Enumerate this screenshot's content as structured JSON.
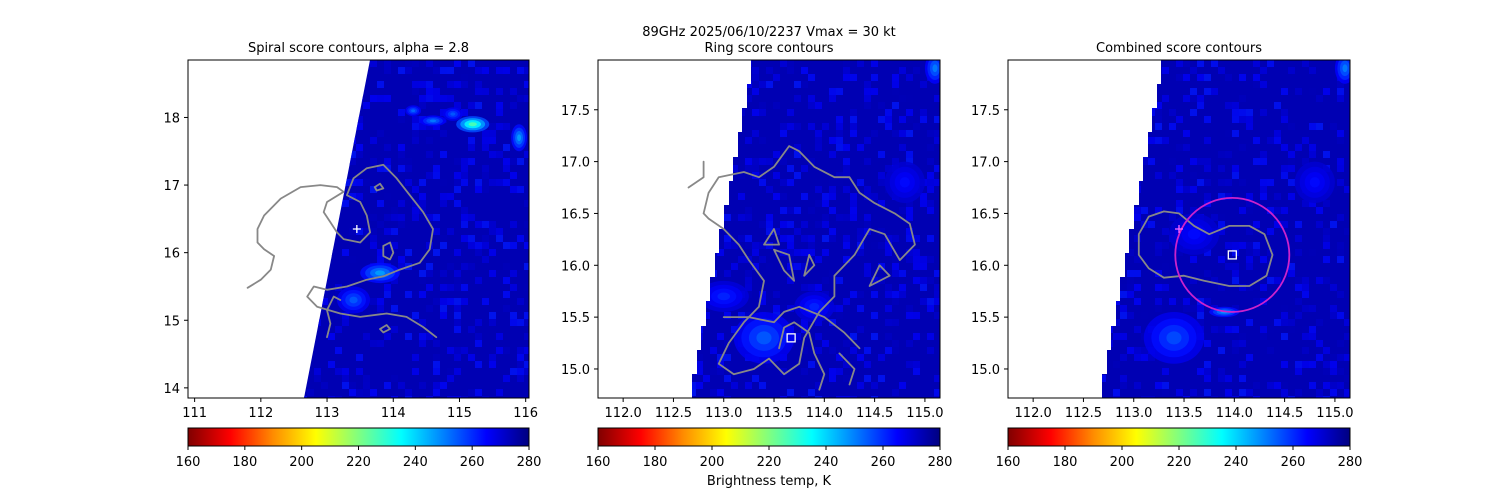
{
  "figure": {
    "suptitle_line1": "89GHz  2025/06/10/2237    Vmax = 30 kt",
    "colorbar_label": "Brightness temp, K"
  },
  "colorbar": {
    "ticks": [
      "160",
      "180",
      "200",
      "220",
      "240",
      "260",
      "280"
    ],
    "range": [
      160,
      280
    ],
    "colormap": "jet_r",
    "colors": [
      "#800000",
      "#ff0000",
      "#ff8c00",
      "#ffff00",
      "#80ff80",
      "#00ffff",
      "#0080ff",
      "#0000ff",
      "#000080"
    ]
  },
  "chart_data": [
    {
      "type": "heatmap",
      "title": "Spiral score contours, alpha =  2.8",
      "xlim": [
        110.9,
        116.05
      ],
      "ylim": [
        13.85,
        18.85
      ],
      "xticks": [
        "111",
        "112",
        "113",
        "114",
        "115",
        "116"
      ],
      "yticks": [
        "14",
        "15",
        "16",
        "17",
        "18"
      ],
      "markers": [
        {
          "type": "plus",
          "x": 113.45,
          "y": 16.35,
          "color": "#ffffff"
        }
      ],
      "contours": [
        [
          [
            111.8,
            15.48
          ],
          [
            112.0,
            15.6
          ],
          [
            112.15,
            15.75
          ],
          [
            112.2,
            15.95
          ],
          [
            112.05,
            16.05
          ],
          [
            111.95,
            16.15
          ],
          [
            111.95,
            16.35
          ],
          [
            112.05,
            16.55
          ],
          [
            112.3,
            16.8
          ],
          [
            112.6,
            16.97
          ],
          [
            112.9,
            17.0
          ],
          [
            113.15,
            16.97
          ],
          [
            113.25,
            16.9
          ],
          [
            113.0,
            16.75
          ],
          [
            112.95,
            16.6
          ],
          [
            113.05,
            16.45
          ],
          [
            113.15,
            16.3
          ],
          [
            113.25,
            16.2
          ],
          [
            113.5,
            16.15
          ],
          [
            113.65,
            16.3
          ],
          [
            113.6,
            16.55
          ],
          [
            113.5,
            16.75
          ],
          [
            113.3,
            16.85
          ],
          [
            113.4,
            17.1
          ],
          [
            113.6,
            17.25
          ],
          [
            113.85,
            17.3
          ],
          [
            114.05,
            17.1
          ],
          [
            114.25,
            16.85
          ],
          [
            114.45,
            16.6
          ],
          [
            114.6,
            16.35
          ],
          [
            114.55,
            16.05
          ],
          [
            114.4,
            15.85
          ],
          [
            114.1,
            15.75
          ],
          [
            113.85,
            15.65
          ],
          [
            113.6,
            15.6
          ],
          [
            113.3,
            15.5
          ],
          [
            113.0,
            15.45
          ],
          [
            112.8,
            15.5
          ],
          [
            112.7,
            15.35
          ],
          [
            112.85,
            15.2
          ],
          [
            113.2,
            15.1
          ],
          [
            113.5,
            15.05
          ],
          [
            113.9,
            15.1
          ],
          [
            114.2,
            15.05
          ],
          [
            114.45,
            14.9
          ],
          [
            114.65,
            14.75
          ]
        ],
        [
          [
            113.0,
            14.75
          ],
          [
            113.05,
            14.95
          ],
          [
            113.0,
            15.15
          ],
          [
            113.1,
            15.35
          ],
          [
            113.2,
            15.3
          ]
        ],
        [
          [
            113.85,
            16.1
          ],
          [
            113.95,
            16.15
          ],
          [
            114.0,
            16.0
          ],
          [
            113.95,
            15.9
          ],
          [
            113.85,
            15.95
          ],
          [
            113.85,
            16.1
          ]
        ],
        [
          [
            113.72,
            16.97
          ],
          [
            113.8,
            17.02
          ],
          [
            113.85,
            16.95
          ],
          [
            113.75,
            16.92
          ],
          [
            113.72,
            16.97
          ]
        ],
        [
          [
            113.8,
            14.87
          ],
          [
            113.9,
            14.93
          ],
          [
            113.95,
            14.87
          ],
          [
            113.85,
            14.82
          ],
          [
            113.8,
            14.87
          ]
        ]
      ]
    },
    {
      "type": "heatmap",
      "title": "Ring score contours",
      "xlim": [
        111.75,
        115.15
      ],
      "ylim": [
        14.72,
        17.98
      ],
      "xticks": [
        "112.0",
        "112.5",
        "113.0",
        "113.5",
        "114.0",
        "114.5",
        "115.0"
      ],
      "yticks": [
        "15.0",
        "15.5",
        "16.0",
        "16.5",
        "17.0",
        "17.5"
      ],
      "markers": [
        {
          "type": "square",
          "x": 113.67,
          "y": 15.3,
          "color": "#ffffff"
        }
      ],
      "contours": [
        [
          [
            112.8,
            16.5
          ],
          [
            112.85,
            16.7
          ],
          [
            112.95,
            16.85
          ],
          [
            113.2,
            16.9
          ],
          [
            113.35,
            16.85
          ],
          [
            113.5,
            16.95
          ],
          [
            113.65,
            17.15
          ],
          [
            113.75,
            17.1
          ],
          [
            113.9,
            16.95
          ],
          [
            114.1,
            16.85
          ],
          [
            114.25,
            16.85
          ],
          [
            114.35,
            16.7
          ],
          [
            114.5,
            16.6
          ],
          [
            114.7,
            16.5
          ],
          [
            114.85,
            16.4
          ],
          [
            114.9,
            16.2
          ],
          [
            114.75,
            16.05
          ],
          [
            114.6,
            16.3
          ],
          [
            114.45,
            16.35
          ],
          [
            114.3,
            16.1
          ],
          [
            114.1,
            15.9
          ],
          [
            114.1,
            15.7
          ],
          [
            113.95,
            15.55
          ],
          [
            113.8,
            15.3
          ],
          [
            113.75,
            15.05
          ],
          [
            113.6,
            14.95
          ],
          [
            113.45,
            15.1
          ],
          [
            113.3,
            15.0
          ],
          [
            113.1,
            14.95
          ],
          [
            112.95,
            15.05
          ],
          [
            113.05,
            15.25
          ],
          [
            113.2,
            15.45
          ],
          [
            113.35,
            15.6
          ],
          [
            113.4,
            15.85
          ],
          [
            113.25,
            16.05
          ],
          [
            113.15,
            16.2
          ],
          [
            113.0,
            16.35
          ],
          [
            112.85,
            16.45
          ],
          [
            112.8,
            16.5
          ]
        ],
        [
          [
            113.55,
            15.2
          ],
          [
            113.6,
            15.4
          ],
          [
            113.7,
            15.45
          ],
          [
            113.85,
            15.35
          ],
          [
            113.9,
            15.15
          ],
          [
            114.0,
            14.95
          ],
          [
            113.95,
            14.8
          ]
        ],
        [
          [
            113.0,
            15.5
          ],
          [
            113.25,
            15.5
          ],
          [
            113.5,
            15.45
          ],
          [
            113.6,
            15.55
          ],
          [
            113.75,
            15.6
          ],
          [
            114.0,
            15.5
          ],
          [
            114.2,
            15.35
          ],
          [
            114.35,
            15.2
          ]
        ],
        [
          [
            114.15,
            15.15
          ],
          [
            114.3,
            15.0
          ],
          [
            114.25,
            14.85
          ]
        ],
        [
          [
            113.8,
            15.9
          ],
          [
            113.85,
            16.1
          ],
          [
            113.9,
            16.0
          ],
          [
            113.8,
            15.9
          ]
        ],
        [
          [
            114.45,
            15.8
          ],
          [
            114.55,
            16.0
          ],
          [
            114.65,
            15.9
          ],
          [
            114.45,
            15.8
          ]
        ],
        [
          [
            113.4,
            16.2
          ],
          [
            113.5,
            16.35
          ],
          [
            113.55,
            16.2
          ],
          [
            113.4,
            16.2
          ]
        ],
        [
          [
            112.65,
            16.75
          ],
          [
            112.8,
            16.85
          ],
          [
            112.8,
            17.0
          ]
        ],
        [
          [
            113.5,
            16.15
          ],
          [
            113.6,
            15.95
          ],
          [
            113.7,
            15.85
          ],
          [
            113.65,
            16.1
          ],
          [
            113.5,
            16.15
          ]
        ]
      ]
    },
    {
      "type": "heatmap",
      "title": "Combined score contours",
      "xlim": [
        111.75,
        115.15
      ],
      "ylim": [
        14.72,
        17.98
      ],
      "xticks": [
        "112.0",
        "112.5",
        "113.0",
        "113.5",
        "114.0",
        "114.5",
        "115.0"
      ],
      "yticks": [
        "15.0",
        "15.5",
        "16.0",
        "16.5",
        "17.0",
        "17.5"
      ],
      "markers": [
        {
          "type": "plus",
          "x": 113.45,
          "y": 16.35,
          "color": "#ffffff"
        },
        {
          "type": "square",
          "x": 113.98,
          "y": 16.1,
          "color": "#ffffff"
        }
      ],
      "circle": {
        "x": 113.98,
        "y": 16.1,
        "r_lat": 0.55,
        "color": "#cc22cc"
      },
      "contours": [
        [
          [
            113.3,
            16.52
          ],
          [
            113.45,
            16.5
          ],
          [
            113.6,
            16.38
          ],
          [
            113.75,
            16.3
          ],
          [
            113.95,
            16.38
          ],
          [
            114.15,
            16.38
          ],
          [
            114.3,
            16.3
          ],
          [
            114.38,
            16.1
          ],
          [
            114.32,
            15.9
          ],
          [
            114.15,
            15.8
          ],
          [
            113.95,
            15.8
          ],
          [
            113.7,
            15.85
          ],
          [
            113.5,
            15.9
          ],
          [
            113.3,
            15.88
          ],
          [
            113.15,
            15.97
          ],
          [
            113.05,
            16.1
          ],
          [
            113.05,
            16.3
          ],
          [
            113.15,
            16.47
          ],
          [
            113.3,
            16.52
          ]
        ]
      ]
    }
  ]
}
